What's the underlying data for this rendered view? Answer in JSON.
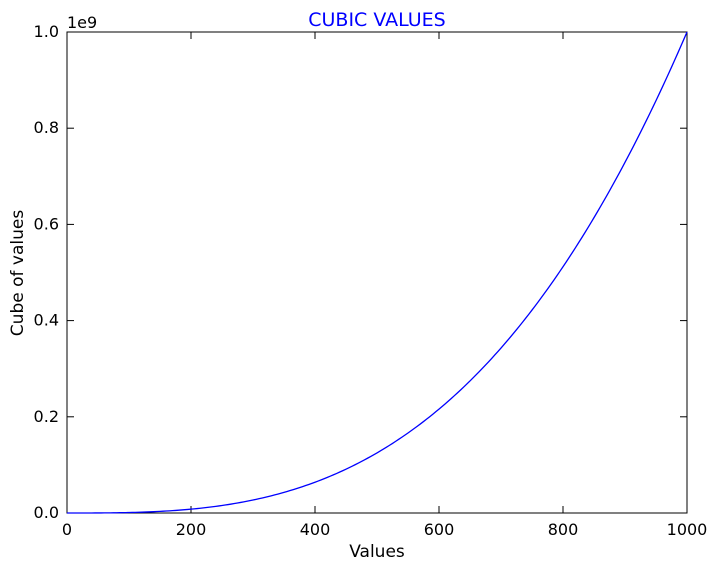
{
  "chart_data": {
    "type": "line",
    "title": "CUBIC VALUES",
    "xlabel": "Values",
    "ylabel": "Cube of values",
    "xlim": [
      0,
      1000
    ],
    "ylim": [
      0,
      1000000000
    ],
    "y_offset_label": "1e9",
    "x_tick_labels": [
      "0",
      "200",
      "400",
      "600",
      "800",
      "1000"
    ],
    "y_tick_labels": [
      "0.0",
      "0.2",
      "0.4",
      "0.6",
      "0.8",
      "1.0"
    ],
    "grid": false,
    "series": [
      {
        "x": [
          0,
          100,
          200,
          300,
          400,
          500,
          600,
          700,
          800,
          900,
          1000
        ],
        "y": [
          0,
          1000000,
          8000000,
          27000000,
          64000000,
          125000000,
          216000000,
          343000000,
          512000000,
          729000000,
          1000000000
        ]
      }
    ],
    "colors": {
      "title": "#0000ff",
      "line": "#0000ff",
      "axes": "#000000"
    }
  }
}
